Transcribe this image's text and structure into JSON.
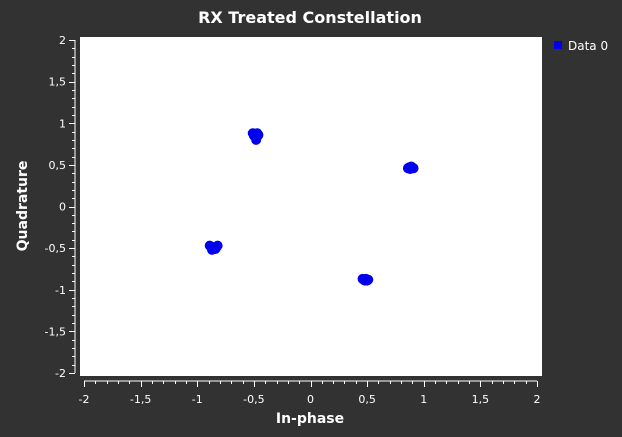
{
  "window": {
    "background": "#323232",
    "plot_background": "#ffffff"
  },
  "chart_data": {
    "type": "scatter",
    "title": "RX Treated Constellation",
    "xlabel": "In-phase",
    "ylabel": "Quadrature",
    "xlim": [
      -2,
      2
    ],
    "ylim": [
      -2,
      2
    ],
    "xticks": [
      "-2",
      "-1,5",
      "-1",
      "-0,5",
      "0",
      "0,5",
      "1",
      "1,5",
      "2"
    ],
    "yticks": [
      "2",
      "1,5",
      "1",
      "0,5",
      "0",
      "-0,5",
      "-1",
      "-1,5",
      "-2"
    ],
    "grid": false,
    "legend_position": "top-right, outside plot",
    "series": [
      {
        "name": "Data 0",
        "color": "#0000ee",
        "points": [
          [
            -0.49,
            0.87
          ],
          [
            -0.47,
            0.88
          ],
          [
            -0.5,
            0.85
          ],
          [
            -0.48,
            0.83
          ],
          [
            -0.46,
            0.86
          ],
          [
            -0.51,
            0.88
          ],
          [
            -0.48,
            0.8
          ],
          [
            -0.47,
            0.84
          ],
          [
            0.87,
            0.47
          ],
          [
            0.89,
            0.48
          ],
          [
            0.91,
            0.46
          ],
          [
            0.88,
            0.45
          ],
          [
            0.9,
            0.47
          ],
          [
            0.86,
            0.46
          ],
          [
            -0.88,
            -0.48
          ],
          [
            -0.86,
            -0.49
          ],
          [
            -0.84,
            -0.51
          ],
          [
            -0.87,
            -0.52
          ],
          [
            -0.85,
            -0.5
          ],
          [
            -0.82,
            -0.47
          ],
          [
            -0.89,
            -0.47
          ],
          [
            -0.83,
            -0.49
          ],
          [
            0.47,
            -0.88
          ],
          [
            0.49,
            -0.87
          ],
          [
            0.51,
            -0.88
          ],
          [
            0.48,
            -0.89
          ],
          [
            0.5,
            -0.89
          ],
          [
            0.46,
            -0.87
          ]
        ]
      }
    ]
  }
}
